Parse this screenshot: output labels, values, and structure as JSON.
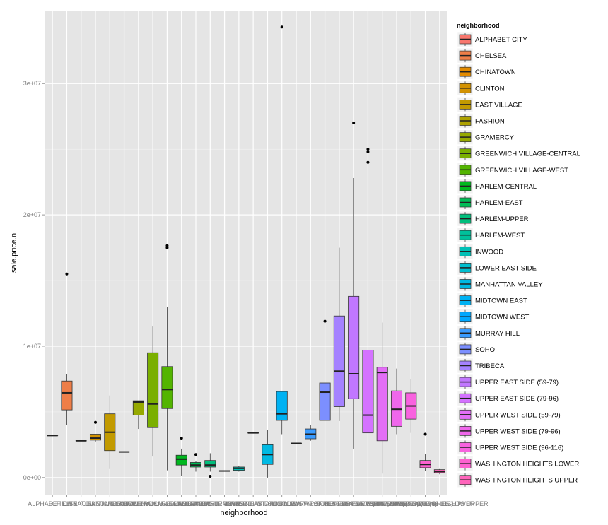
{
  "chart_data": {
    "type": "boxplot",
    "xlabel": "neighborhood",
    "ylabel": "sale.price.n",
    "ylim": [
      -1300000,
      35500000
    ],
    "y_ticks": [
      {
        "value": 0,
        "label": "0e+00"
      },
      {
        "value": 10000000,
        "label": "1e+07"
      },
      {
        "value": 20000000,
        "label": "2e+07"
      },
      {
        "value": 30000000,
        "label": "3e+07"
      }
    ],
    "legend": {
      "title": "neighborhood",
      "position": "right"
    },
    "grid": true,
    "categories": [
      "ALPHABET CITY",
      "CHELSEA",
      "CHINATOWN",
      "CLINTON",
      "EAST VILLAGE",
      "FASHION",
      "GRAMERCY",
      "GREENWICH VILLAGE-CENTRAL",
      "GREENWICH VILLAGE-WEST",
      "HARLEM-CENTRAL",
      "HARLEM-EAST",
      "HARLEM-UPPER",
      "HARLEM-WEST",
      "INWOOD",
      "LOWER EAST SIDE",
      "MANHATTAN VALLEY",
      "MIDTOWN EAST",
      "MIDTOWN WEST",
      "MURRAY HILL",
      "SOHO",
      "TRIBECA",
      "UPPER EAST SIDE (59-79)",
      "UPPER EAST SIDE (79-96)",
      "UPPER WEST SIDE (59-79)",
      "UPPER WEST SIDE (79-96)",
      "UPPER WEST SIDE (96-116)",
      "WASHINGTON HEIGHTS LOWER",
      "WASHINGTON HEIGHTS UPPER"
    ],
    "colors": [
      "#F8766D",
      "#EE7E48",
      "#E28A00",
      "#D39200",
      "#C29A00",
      "#AEA200",
      "#96A900",
      "#7AAF00",
      "#53B400",
      "#00B81F",
      "#00BC56",
      "#00BE7C",
      "#00C09B",
      "#00C0B6",
      "#00BECF",
      "#00B9E3",
      "#00B2F3",
      "#00A7FF",
      "#3A9BFF",
      "#7C8FFF",
      "#A582FF",
      "#C177FF",
      "#D472FF",
      "#E36EF6",
      "#EF67EB",
      "#F863DF",
      "#FD61CF",
      "#FF64BB"
    ],
    "boxes": [
      {
        "name": "ALPHABET CITY",
        "min": 3200000,
        "q1": 3200000,
        "median": 3200000,
        "q3": 3200000,
        "max": 3200000,
        "outliers": []
      },
      {
        "name": "CHELSEA",
        "min": 4000000,
        "q1": 5150000,
        "median": 6450000,
        "q3": 7350000,
        "max": 7900000,
        "outliers": [
          15500000
        ]
      },
      {
        "name": "CHINATOWN",
        "min": 2800000,
        "q1": 2800000,
        "median": 2800000,
        "q3": 2800000,
        "max": 2800000,
        "outliers": []
      },
      {
        "name": "CLINTON",
        "min": 2700000,
        "q1": 2850000,
        "median": 3000000,
        "q3": 3300000,
        "max": 3300000,
        "outliers": [
          4200000
        ]
      },
      {
        "name": "EAST VILLAGE",
        "min": 650000,
        "q1": 2050000,
        "median": 3450000,
        "q3": 4850000,
        "max": 6250000,
        "outliers": []
      },
      {
        "name": "FASHION",
        "min": 1950000,
        "q1": 1950000,
        "median": 1950000,
        "q3": 1950000,
        "max": 1950000,
        "outliers": []
      },
      {
        "name": "GRAMERCY",
        "min": 3700000,
        "q1": 4750000,
        "median": 5750000,
        "q3": 5850000,
        "max": 5850000,
        "outliers": []
      },
      {
        "name": "GREENWICH VILLAGE-CENTRAL",
        "min": 1600000,
        "q1": 3800000,
        "median": 5600000,
        "q3": 9500000,
        "max": 11500000,
        "outliers": []
      },
      {
        "name": "GREENWICH VILLAGE-WEST",
        "min": 550000,
        "q1": 5250000,
        "median": 6700000,
        "q3": 8450000,
        "max": 13000000,
        "outliers": [
          17500000,
          17650000
        ]
      },
      {
        "name": "HARLEM-CENTRAL",
        "min": 150000,
        "q1": 950000,
        "median": 1400000,
        "q3": 1700000,
        "max": 2200000,
        "outliers": [
          3000000
        ]
      },
      {
        "name": "HARLEM-EAST",
        "min": 450000,
        "q1": 800000,
        "median": 950000,
        "q3": 1150000,
        "max": 1250000,
        "outliers": [
          1750000
        ]
      },
      {
        "name": "HARLEM-UPPER",
        "min": 450000,
        "q1": 800000,
        "median": 950000,
        "q3": 1300000,
        "max": 1850000,
        "outliers": [
          100000
        ]
      },
      {
        "name": "HARLEM-WEST",
        "min": 500000,
        "q1": 500000,
        "median": 500000,
        "q3": 500000,
        "max": 500000,
        "outliers": []
      },
      {
        "name": "INWOOD",
        "min": 450000,
        "q1": 550000,
        "median": 700000,
        "q3": 800000,
        "max": 900000,
        "outliers": []
      },
      {
        "name": "LOWER EAST SIDE",
        "min": 3400000,
        "q1": 3400000,
        "median": 3400000,
        "q3": 3400000,
        "max": 3400000,
        "outliers": []
      },
      {
        "name": "MANHATTAN VALLEY",
        "min": 0,
        "q1": 1000000,
        "median": 1750000,
        "q3": 2500000,
        "max": 3650000,
        "outliers": []
      },
      {
        "name": "MIDTOWN EAST",
        "min": 3300000,
        "q1": 4350000,
        "median": 4850000,
        "q3": 6550000,
        "max": 6550000,
        "outliers": [
          34300000
        ]
      },
      {
        "name": "MIDTOWN WEST",
        "min": 2600000,
        "q1": 2600000,
        "median": 2600000,
        "q3": 2600000,
        "max": 2600000,
        "outliers": []
      },
      {
        "name": "MURRAY HILL",
        "min": 2800000,
        "q1": 2950000,
        "median": 3300000,
        "q3": 3700000,
        "max": 4000000,
        "outliers": []
      },
      {
        "name": "SOHO",
        "min": 4300000,
        "q1": 4350000,
        "median": 6500000,
        "q3": 7200000,
        "max": 7200000,
        "outliers": [
          11900000
        ]
      },
      {
        "name": "TRIBECA",
        "min": 4300000,
        "q1": 5400000,
        "median": 8100000,
        "q3": 12300000,
        "max": 17500000,
        "outliers": []
      },
      {
        "name": "UPPER EAST SIDE (59-79)",
        "min": 2200000,
        "q1": 6000000,
        "median": 7900000,
        "q3": 13800000,
        "max": 22800000,
        "outliers": [
          27000000
        ]
      },
      {
        "name": "UPPER EAST SIDE (79-96)",
        "min": 700000,
        "q1": 3400000,
        "median": 4750000,
        "q3": 9700000,
        "max": 15000000,
        "outliers": [
          24000000,
          24800000,
          25000000
        ]
      },
      {
        "name": "UPPER WEST SIDE (59-79)",
        "min": 300000,
        "q1": 2800000,
        "median": 8000000,
        "q3": 8400000,
        "max": 11800000,
        "outliers": []
      },
      {
        "name": "UPPER WEST SIDE (79-96)",
        "min": 3300000,
        "q1": 3900000,
        "median": 5200000,
        "q3": 6600000,
        "max": 8300000,
        "outliers": []
      },
      {
        "name": "UPPER WEST SIDE (96-116)",
        "min": 3400000,
        "q1": 4450000,
        "median": 5450000,
        "q3": 6450000,
        "max": 7500000,
        "outliers": []
      },
      {
        "name": "WASHINGTON HEIGHTS LOWER",
        "min": 500000,
        "q1": 750000,
        "median": 1000000,
        "q3": 1300000,
        "max": 1800000,
        "outliers": [
          3300000
        ]
      },
      {
        "name": "WASHINGTON HEIGHTS UPPER",
        "min": 250000,
        "q1": 350000,
        "median": 450000,
        "q3": 600000,
        "max": 650000,
        "outliers": []
      }
    ]
  }
}
